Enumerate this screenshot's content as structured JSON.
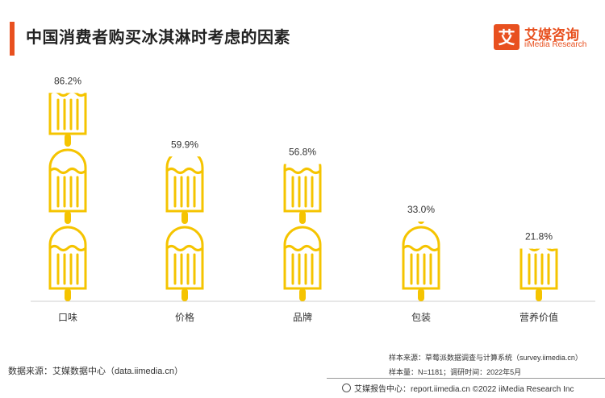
{
  "header": {
    "title": "中国消费者购买冰淇淋时考虑的因素"
  },
  "logo": {
    "mark_char": "艾",
    "name_cn": "艾媒咨询",
    "name_en": "iiMedia Research"
  },
  "chart_data": {
    "type": "bar",
    "categories": [
      "口味",
      "价格",
      "品牌",
      "包装",
      "营养价值"
    ],
    "values": [
      86.2,
      59.9,
      56.8,
      33.0,
      21.8
    ],
    "value_labels": [
      "86.2%",
      "59.9%",
      "56.8%",
      "33.0%",
      "21.8%"
    ],
    "title": "中国消费者购买冰淇淋时考虑的因素",
    "ylim": [
      0,
      100
    ],
    "grid": false,
    "color": "#f5c400",
    "icon": "popsicle-icon"
  },
  "footer": {
    "source": "数据来源：艾媒数据中心（data.iimedia.cn）",
    "sample_source": "样本来源：草莓派数据调查与计算系统（survey.iimedia.cn）",
    "sample_size": "样本量：N=1181；调研时间：2022年5月",
    "copyright": "艾媒报告中心：report.iimedia.cn  ©2022  iiMedia Research  Inc"
  }
}
